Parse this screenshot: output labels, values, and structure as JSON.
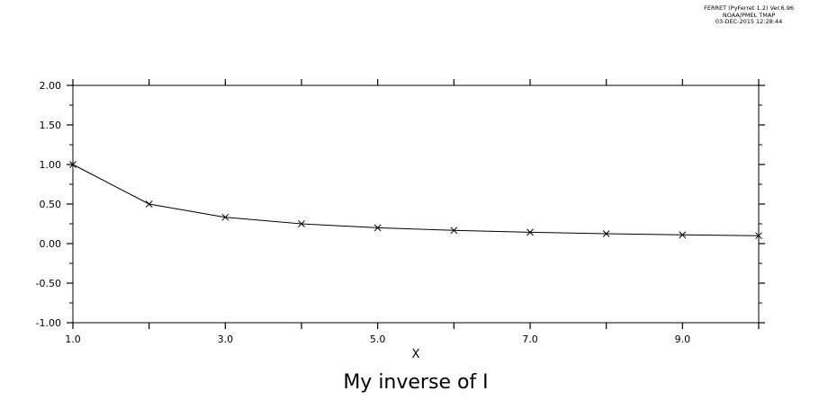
{
  "header": {
    "line1": "FERRET (PyFerret 1.2) Ver.6.96",
    "line2": "NOAA/PMEL TMAP",
    "line3": "03-DEC-2015 12:28:44"
  },
  "chart_data": {
    "type": "line",
    "title": "My inverse of I",
    "xlabel": "X",
    "ylabel": "",
    "xlim": [
      1,
      10
    ],
    "ylim": [
      -1,
      2
    ],
    "x_ticks": [
      1,
      3,
      5,
      7,
      9
    ],
    "x_tick_labels": [
      "1.0",
      "3.0",
      "5.0",
      "7.0",
      "9.0"
    ],
    "x_minor_ticks": [
      2,
      4,
      6,
      8,
      10
    ],
    "y_ticks": [
      -1,
      -0.5,
      0,
      0.5,
      1,
      1.5,
      2
    ],
    "y_tick_labels": [
      "-1.00",
      "-0.50",
      "0.00",
      "0.50",
      "1.00",
      "1.50",
      "2.00"
    ],
    "y_minor_ticks": [
      -0.75,
      -0.25,
      0.25,
      0.75,
      1.25,
      1.75
    ],
    "marker": "x",
    "grid": false,
    "series": [
      {
        "x": [
          1,
          2,
          3,
          4,
          5,
          6,
          7,
          8,
          9,
          10
        ],
        "values": [
          1.0,
          0.5,
          0.333,
          0.25,
          0.2,
          0.167,
          0.143,
          0.125,
          0.111,
          0.1
        ]
      }
    ]
  }
}
